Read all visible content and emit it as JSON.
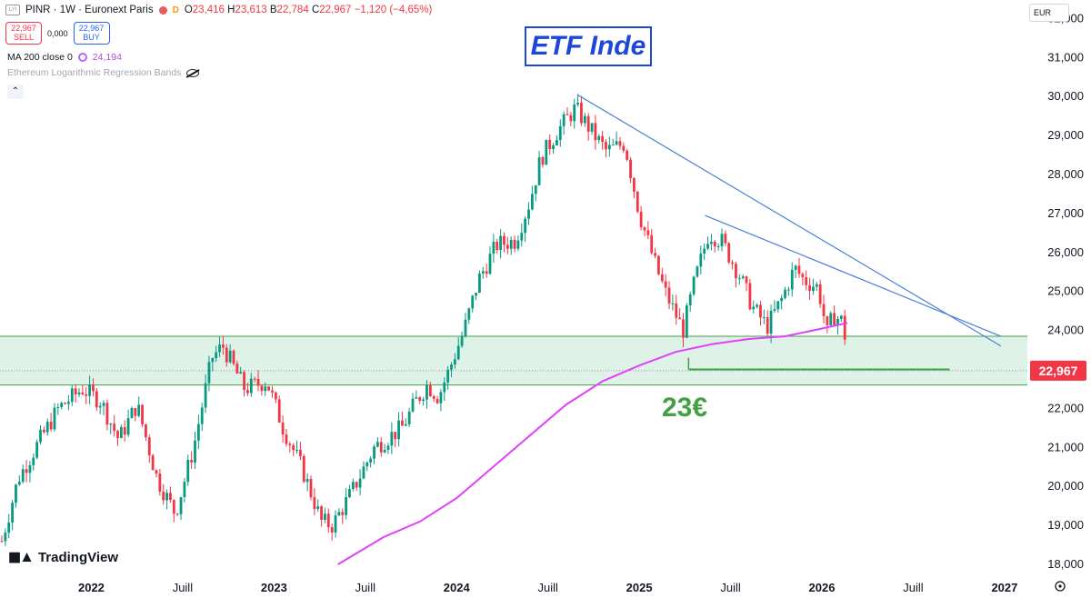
{
  "header": {
    "symbol_line": "PINR · 1W · Euronext Paris",
    "flag": "D",
    "ohlc": [
      {
        "k": "O",
        "v": "23,416"
      },
      {
        "k": "H",
        "v": "23,613"
      },
      {
        "k": "B",
        "v": "22,784"
      },
      {
        "k": "C",
        "v": "22,967"
      }
    ],
    "change": "−1,120 (−4,65%)"
  },
  "trade": {
    "sell_price": "22,967",
    "sell_label": "SELL",
    "spread": "0,000",
    "buy_price": "22,967",
    "buy_label": "BUY"
  },
  "indicators": {
    "ma_label": "MA 200 close 0",
    "ma_value": "24,194",
    "erb_label": "Ethereum Logarithmic Regression Bands"
  },
  "currency": "EUR",
  "title": "ETF Inde",
  "annotation": "23€",
  "brand": "TradingView",
  "colors": {
    "up": "#089981",
    "down": "#f23645",
    "ma": "#e040fb",
    "zone": "#d8f0e3",
    "zone_line": "#43a047",
    "trend": "#4a7fd6",
    "title": "#1c47d8",
    "price_tag": "#f23645"
  },
  "chart_data": {
    "type": "candlestick",
    "timeframe": "1W",
    "ylim": [
      18000,
      32000
    ],
    "y_ticks": [
      "18,000",
      "19,000",
      "20,000",
      "21,000",
      "22,000",
      "23,000",
      "24,000",
      "25,000",
      "26,000",
      "27,000",
      "28,000",
      "29,000",
      "30,000",
      "31,000",
      "32,000"
    ],
    "x_ticks": [
      {
        "label": "2022",
        "t": 2022.0
      },
      {
        "label": "Juill",
        "t": 2022.5
      },
      {
        "label": "2023",
        "t": 2023.0
      },
      {
        "label": "Juill",
        "t": 2023.5
      },
      {
        "label": "2024",
        "t": 2024.0
      },
      {
        "label": "Juill",
        "t": 2024.5
      },
      {
        "label": "2025",
        "t": 2025.0
      },
      {
        "label": "Juill",
        "t": 2025.5
      },
      {
        "label": "2026",
        "t": 2026.0
      },
      {
        "label": "Juill",
        "t": 2026.5
      },
      {
        "label": "2027",
        "t": 2027.0
      }
    ],
    "last_price": "22,967",
    "price_path": [
      [
        2021.51,
        18600
      ],
      [
        2021.6,
        20200
      ],
      [
        2021.72,
        21200
      ],
      [
        2021.82,
        22000
      ],
      [
        2021.95,
        22500
      ],
      [
        2022.05,
        22200
      ],
      [
        2022.15,
        21200
      ],
      [
        2022.25,
        22100
      ],
      [
        2022.36,
        20200
      ],
      [
        2022.46,
        19300
      ],
      [
        2022.56,
        21000
      ],
      [
        2022.66,
        23300
      ],
      [
        2022.72,
        23600
      ],
      [
        2022.84,
        22500
      ],
      [
        2022.96,
        22700
      ],
      [
        2023.05,
        21500
      ],
      [
        2023.15,
        20500
      ],
      [
        2023.26,
        19100
      ],
      [
        2023.32,
        19000
      ],
      [
        2023.42,
        19800
      ],
      [
        2023.55,
        21000
      ],
      [
        2023.7,
        21500
      ],
      [
        2023.78,
        22200
      ],
      [
        2023.84,
        22600
      ],
      [
        2023.9,
        22300
      ],
      [
        2023.96,
        23000
      ],
      [
        2024.04,
        24000
      ],
      [
        2024.12,
        25300
      ],
      [
        2024.22,
        26200
      ],
      [
        2024.32,
        26300
      ],
      [
        2024.4,
        27300
      ],
      [
        2024.46,
        28400
      ],
      [
        2024.55,
        29100
      ],
      [
        2024.65,
        29700
      ],
      [
        2024.74,
        29100
      ],
      [
        2024.82,
        28600
      ],
      [
        2024.92,
        28800
      ],
      [
        2025.0,
        27000
      ],
      [
        2025.08,
        25800
      ],
      [
        2025.14,
        25000
      ],
      [
        2025.24,
        24000
      ],
      [
        2025.3,
        25200
      ],
      [
        2025.38,
        26500
      ],
      [
        2025.45,
        26300
      ],
      [
        2025.55,
        25400
      ],
      [
        2025.62,
        24600
      ],
      [
        2025.7,
        24100
      ],
      [
        2025.78,
        24800
      ],
      [
        2025.85,
        25600
      ],
      [
        2025.9,
        25300
      ],
      [
        2025.98,
        25100
      ],
      [
        2026.03,
        23900
      ],
      [
        2026.06,
        24400
      ],
      [
        2026.12,
        24200
      ],
      [
        2026.14,
        22967
      ]
    ],
    "ma200": [
      [
        2023.35,
        18000
      ],
      [
        2023.6,
        18700
      ],
      [
        2023.8,
        19100
      ],
      [
        2024.0,
        19700
      ],
      [
        2024.2,
        20500
      ],
      [
        2024.4,
        21300
      ],
      [
        2024.6,
        22100
      ],
      [
        2024.8,
        22700
      ],
      [
        2025.0,
        23100
      ],
      [
        2025.2,
        23450
      ],
      [
        2025.4,
        23650
      ],
      [
        2025.6,
        23780
      ],
      [
        2025.8,
        23850
      ],
      [
        2026.0,
        24050
      ],
      [
        2026.14,
        24194
      ]
    ],
    "support_zone": [
      22600,
      23850
    ],
    "support_line": {
      "y": 23000,
      "from": 2025.27,
      "to": 2026.7
    },
    "trendlines": [
      {
        "from": [
          2024.66,
          30050
        ],
        "to": [
          2026.98,
          23600
        ]
      },
      {
        "from": [
          2025.36,
          26950
        ],
        "to": [
          2026.98,
          23850
        ]
      }
    ]
  }
}
